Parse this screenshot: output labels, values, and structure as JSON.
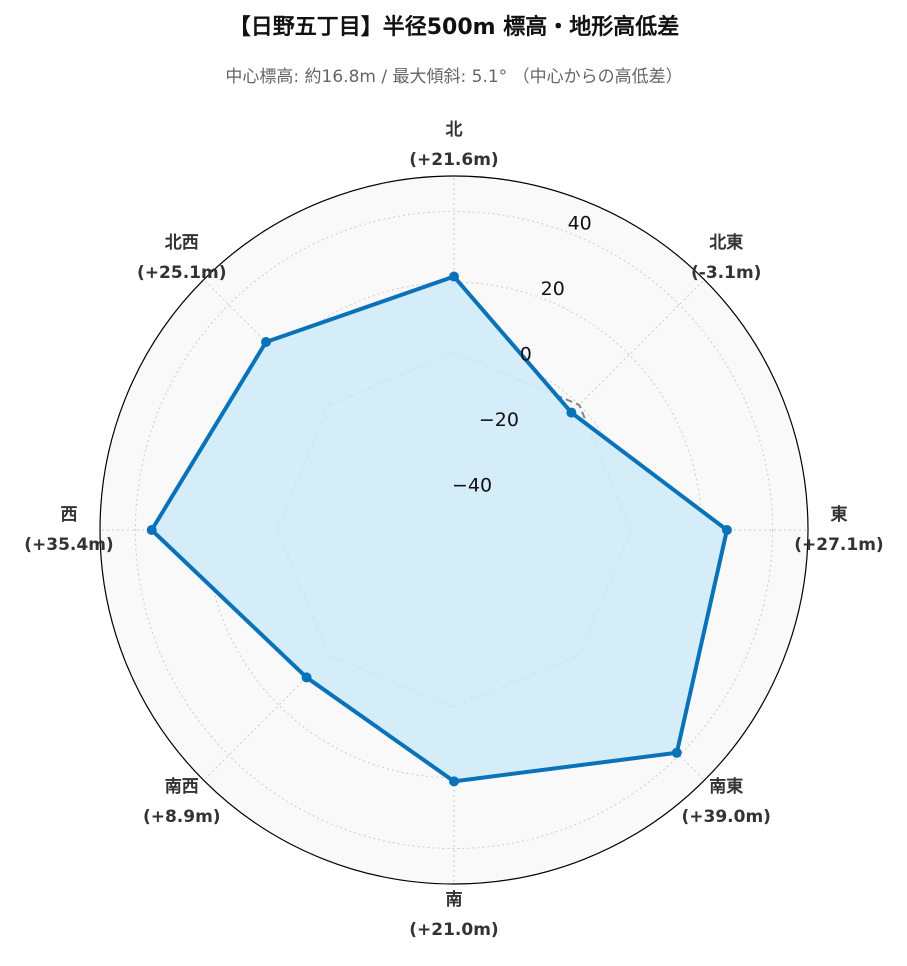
{
  "chart_data": {
    "type": "radar",
    "title": "【日野五丁目】半径500m 標高・地形高低差",
    "subtitle": "中心標高: 約16.8m / 最大傾斜: 5.1° （中心からの高低差）",
    "categories": [
      "北",
      "北東",
      "東",
      "南東",
      "南",
      "南西",
      "西",
      "北西"
    ],
    "series": [
      {
        "color": "#0a72b8",
        "fill": "#d3ecf8",
        "values": [
          21.6,
          -3.1,
          27.1,
          39.0,
          21.0,
          8.9,
          35.4,
          25.1
        ],
        "value_labels": [
          "(+21.6m)",
          "(-3.1m)",
          "(+27.1m)",
          "(+39.0m)",
          "(+21.0m)",
          "(+8.9m)",
          "(+35.4m)",
          "(+25.1m)"
        ]
      }
    ],
    "baseline": 0,
    "ylim": [
      -50,
      50
    ],
    "yticks": [
      {
        "value": -40,
        "label": "−40"
      },
      {
        "value": -20,
        "label": "−20"
      },
      0,
      20,
      40
    ],
    "grid": true
  }
}
